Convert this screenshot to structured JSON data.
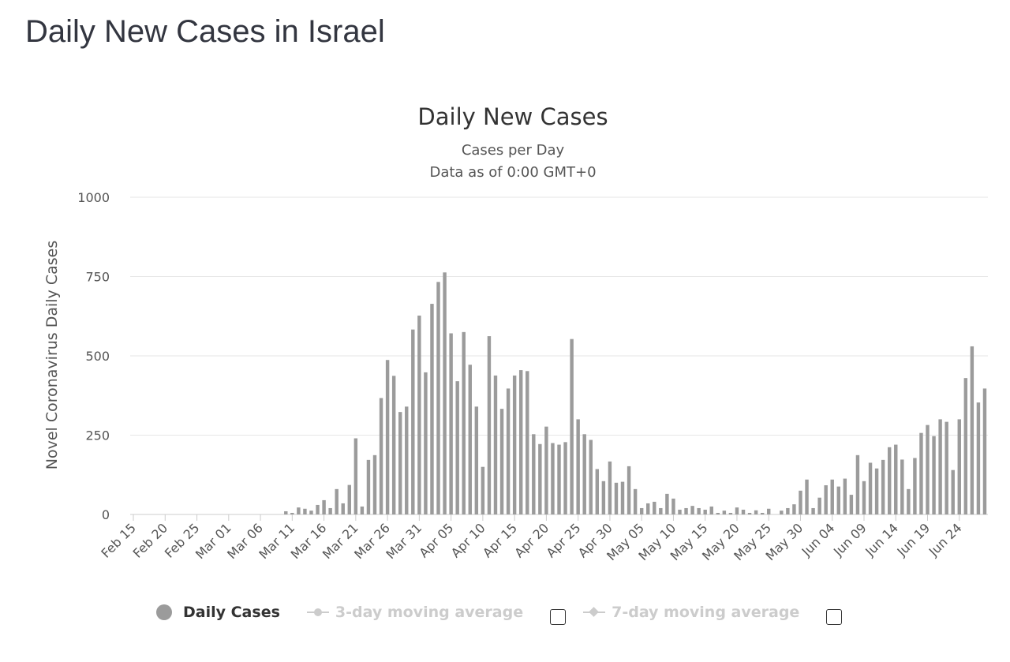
{
  "page": {
    "title": "Daily New Cases in Israel"
  },
  "chart_data": {
    "type": "bar",
    "title": "Daily New Cases",
    "subtitle_lines": [
      "Cases per Day",
      "Data as of 0:00 GMT+0"
    ],
    "ylabel": "Novel Coronavirus Daily Cases",
    "xlabel": "",
    "ylim": [
      0,
      1000
    ],
    "yticks": [
      0,
      250,
      500,
      750,
      1000
    ],
    "grid": true,
    "bar_color": "#9b9b9b",
    "start_date": "Feb 15",
    "tick_labels": [
      "Feb 15",
      "Feb 20",
      "Feb 25",
      "Mar 01",
      "Mar 06",
      "Mar 11",
      "Mar 16",
      "Mar 21",
      "Mar 26",
      "Mar 31",
      "Apr 05",
      "Apr 10",
      "Apr 15",
      "Apr 20",
      "Apr 25",
      "Apr 30",
      "May 05",
      "May 10",
      "May 15",
      "May 20",
      "May 25",
      "May 30",
      "Jun 04",
      "Jun 09",
      "Jun 14",
      "Jun 19",
      "Jun 24"
    ],
    "tick_every": 5,
    "series": [
      {
        "name": "Daily Cases",
        "values": [
          0,
          0,
          0,
          0,
          0,
          0,
          0,
          0,
          0,
          0,
          0,
          0,
          0,
          0,
          0,
          0,
          0,
          0,
          0,
          0,
          0,
          0,
          0,
          0,
          10,
          5,
          22,
          18,
          12,
          30,
          45,
          20,
          80,
          35,
          93,
          240,
          25,
          172,
          187,
          367,
          487,
          437,
          323,
          340,
          583,
          627,
          448,
          664,
          733,
          763,
          571,
          420,
          575,
          472,
          340,
          150,
          562,
          438,
          333,
          397,
          438,
          455,
          452,
          253,
          222,
          277,
          225,
          220,
          228,
          553,
          300,
          253,
          235,
          143,
          105,
          167,
          100,
          103,
          152,
          80,
          20,
          35,
          40,
          20,
          65,
          50,
          15,
          20,
          27,
          20,
          15,
          25,
          5,
          12,
          5,
          22,
          15,
          5,
          13,
          5,
          18,
          0,
          12,
          20,
          32,
          75,
          110,
          20,
          53,
          92,
          110,
          88,
          113,
          62,
          187,
          105,
          163,
          145,
          172,
          212,
          220,
          173,
          80,
          178,
          257,
          282,
          247,
          300,
          292,
          140,
          300,
          430,
          530,
          353,
          397
        ]
      }
    ],
    "legend": {
      "placement": "bottom-center",
      "items": [
        {
          "label": "Daily Cases",
          "active": true
        },
        {
          "label": "3-day moving average",
          "active": false
        },
        {
          "label": "7-day moving average",
          "active": false
        }
      ]
    }
  }
}
